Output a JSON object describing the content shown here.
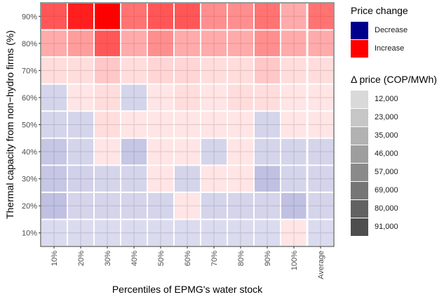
{
  "chart_data": {
    "type": "heatmap",
    "xlabel": "Percentiles of EPMG's water stock",
    "ylabel": "Thermal capacity from non−hydro firms (%)",
    "x_categories": [
      "10%",
      "20%",
      "30%",
      "40%",
      "50%",
      "60%",
      "70%",
      "80%",
      "90%",
      "100%",
      "Average"
    ],
    "y_categories": [
      "10%",
      "20%",
      "30%",
      "40%",
      "50%",
      "60%",
      "70%",
      "80%",
      "90%"
    ],
    "color_legend": {
      "title": "Price change",
      "entries": [
        {
          "label": "Decrease",
          "color": "#00008b"
        },
        {
          "label": "Increase",
          "color": "#ff0000"
        }
      ]
    },
    "size_legend": {
      "title": "Δ price (COP/MWh)",
      "entries": [
        "12,000",
        "23,000",
        "35,000",
        "46,000",
        "57,000",
        "69,000",
        "80,000",
        "91,000"
      ]
    },
    "cells_note": "Each row lists the value for x_categories in order; negative = price decrease, positive = price increase (COP/MWh).",
    "values": [
      [
        -4000,
        -4000,
        -4000,
        -4000,
        -4000,
        -4000,
        -4000,
        -4000,
        -4000,
        4000,
        -4000
      ],
      [
        -12000,
        -6000,
        -6000,
        -6000,
        -6000,
        6000,
        -6000,
        -6000,
        -6000,
        -12000,
        -6000
      ],
      [
        -10000,
        -7000,
        -6000,
        -6000,
        6000,
        -6000,
        6000,
        6000,
        -12000,
        -6000,
        -6000
      ],
      [
        -10000,
        -6000,
        6000,
        -10000,
        6000,
        6000,
        -6000,
        6000,
        -6000,
        -6000,
        -6000
      ],
      [
        -6000,
        -6000,
        12000,
        6000,
        6000,
        6000,
        6000,
        6000,
        -6000,
        6000,
        6000
      ],
      [
        -6000,
        6000,
        12000,
        -6000,
        6000,
        12000,
        6000,
        12000,
        12000,
        6000,
        6000
      ],
      [
        12000,
        12000,
        20000,
        12000,
        15000,
        15000,
        12000,
        12000,
        20000,
        12000,
        12000
      ],
      [
        30000,
        35000,
        60000,
        30000,
        40000,
        30000,
        30000,
        30000,
        40000,
        30000,
        30000
      ],
      [
        60000,
        80000,
        91000,
        50000,
        60000,
        60000,
        40000,
        40000,
        50000,
        30000,
        50000
      ]
    ],
    "grid": true
  }
}
